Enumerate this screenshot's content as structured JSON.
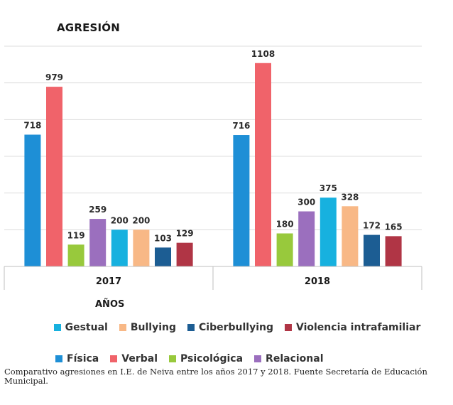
{
  "chart_data": {
    "type": "bar",
    "title": "AGRESIÓN",
    "xlabel": "AÑOS",
    "ylabel": "",
    "categories": [
      "2017",
      "2018"
    ],
    "ylim": [
      0,
      1200
    ],
    "grid": true,
    "series": [
      {
        "name": "Física",
        "color": "#1e8fd6",
        "values": [
          718,
          716
        ]
      },
      {
        "name": "Verbal",
        "color": "#f0636a",
        "values": [
          979,
          1108
        ]
      },
      {
        "name": "Psicológica",
        "color": "#98c93c",
        "values": [
          119,
          180
        ]
      },
      {
        "name": "Relacional",
        "color": "#9b6fbe",
        "values": [
          259,
          300
        ]
      },
      {
        "name": "Gestual",
        "color": "#17b1df",
        "values": [
          200,
          375
        ]
      },
      {
        "name": "Bullying",
        "color": "#f8b886",
        "values": [
          200,
          328
        ]
      },
      {
        "name": "Ciberbullying",
        "color": "#1c5d93",
        "values": [
          103,
          172
        ]
      },
      {
        "name": "Violencia intrafamiliar",
        "color": "#b03545",
        "values": [
          129,
          165
        ]
      }
    ],
    "legend_rows": [
      [
        "Gestual",
        "Bullying",
        "Ciberbullying",
        "Violencia intrafamiliar"
      ],
      [
        "Física",
        "Verbal",
        "Psicológica",
        "Relacional"
      ]
    ]
  },
  "caption": "Comparativo agresiones en I.E. de Neiva entre los años 2017 y 2018. Fuente Secretaría de Educación Municipal."
}
